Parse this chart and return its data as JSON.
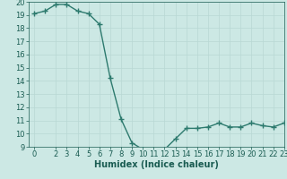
{
  "x": [
    0,
    1,
    2,
    3,
    4,
    5,
    6,
    7,
    8,
    9,
    10,
    11,
    12,
    13,
    14,
    15,
    16,
    17,
    18,
    19,
    20,
    21,
    22,
    23
  ],
  "y": [
    19.1,
    19.3,
    19.8,
    19.8,
    19.3,
    19.1,
    18.3,
    14.2,
    11.1,
    9.3,
    8.8,
    8.7,
    8.8,
    9.6,
    10.4,
    10.4,
    10.5,
    10.8,
    10.5,
    10.5,
    10.8,
    10.6,
    10.5,
    10.8
  ],
  "xlabel": "Humidex (Indice chaleur)",
  "xlim": [
    -0.5,
    23
  ],
  "ylim": [
    9,
    20
  ],
  "yticks": [
    9,
    10,
    11,
    12,
    13,
    14,
    15,
    16,
    17,
    18,
    19,
    20
  ],
  "xticks": [
    0,
    2,
    3,
    4,
    5,
    6,
    7,
    8,
    9,
    10,
    11,
    12,
    13,
    14,
    15,
    16,
    17,
    18,
    19,
    20,
    21,
    22,
    23
  ],
  "line_color": "#2d7a6e",
  "marker_color": "#2d7a6e",
  "bg_color": "#cce8e4",
  "grid_color": "#b8d8d4",
  "axis_label_color": "#1a5c52",
  "tick_color": "#1a5c52",
  "marker": "+",
  "marker_size": 4,
  "line_width": 1.0,
  "xlabel_fontsize": 7,
  "tick_fontsize": 6
}
